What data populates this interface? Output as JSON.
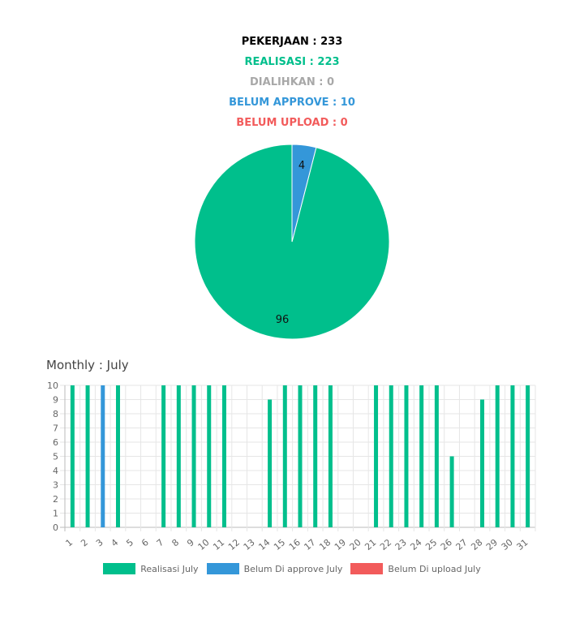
{
  "summary": {
    "pekerjaan": "PEKERJAAN : 233",
    "realisasi": "REALISASI : 223",
    "dialihkan": "DIALIHKAN : 0",
    "belum_approve": "BELUM APPROVE : 10",
    "belum_upload": "BELUM UPLOAD : 0"
  },
  "colors": {
    "pekerjaan": "#000000",
    "realisasi": "#00bf8c",
    "dialihkan": "#a8a8a8",
    "belum_approve": "#3497d9",
    "belum_upload": "#f25b5b"
  },
  "monthly_title": "Monthly : July",
  "chart_data": [
    {
      "type": "pie",
      "slices": [
        {
          "value": 96,
          "label": "96",
          "color": "#00bf8c"
        },
        {
          "value": 4,
          "label": "4",
          "color": "#3497d9"
        }
      ]
    },
    {
      "type": "bar",
      "categories": [
        "1",
        "2",
        "3",
        "4",
        "5",
        "6",
        "7",
        "8",
        "9",
        "10",
        "11",
        "12",
        "13",
        "14",
        "15",
        "16",
        "17",
        "18",
        "19",
        "20",
        "21",
        "22",
        "23",
        "24",
        "25",
        "26",
        "27",
        "28",
        "29",
        "30",
        "31"
      ],
      "series": [
        {
          "name": "Realisasi July",
          "color": "#00bf8c",
          "values": [
            10,
            10,
            0,
            10,
            0,
            0,
            10,
            10,
            10,
            10,
            10,
            0,
            0,
            9,
            10,
            10,
            10,
            10,
            0,
            0,
            10,
            10,
            10,
            10,
            10,
            5,
            0,
            9,
            10,
            10,
            10
          ]
        },
        {
          "name": "Belum Di approve July",
          "color": "#3497d9",
          "values": [
            0,
            0,
            10,
            0,
            0,
            0,
            0,
            0,
            0,
            0,
            0,
            0,
            0,
            0,
            0,
            0,
            0,
            0,
            0,
            0,
            0,
            0,
            0,
            0,
            0,
            0,
            0,
            0,
            0,
            0,
            0
          ]
        },
        {
          "name": "Belum Di upload July",
          "color": "#f25b5b",
          "values": [
            0,
            0,
            0,
            0,
            0,
            0,
            0,
            0,
            0,
            0,
            0,
            0,
            0,
            0,
            0,
            0,
            0,
            0,
            0,
            0,
            0,
            0,
            0,
            0,
            0,
            0,
            0,
            0,
            0,
            0,
            0
          ]
        }
      ],
      "ylim": [
        0,
        10
      ],
      "yticks": [
        "0",
        "1",
        "2",
        "3",
        "4",
        "5",
        "6",
        "7",
        "8",
        "9",
        "10"
      ],
      "grid": true,
      "legend_position": "bottom"
    }
  ]
}
